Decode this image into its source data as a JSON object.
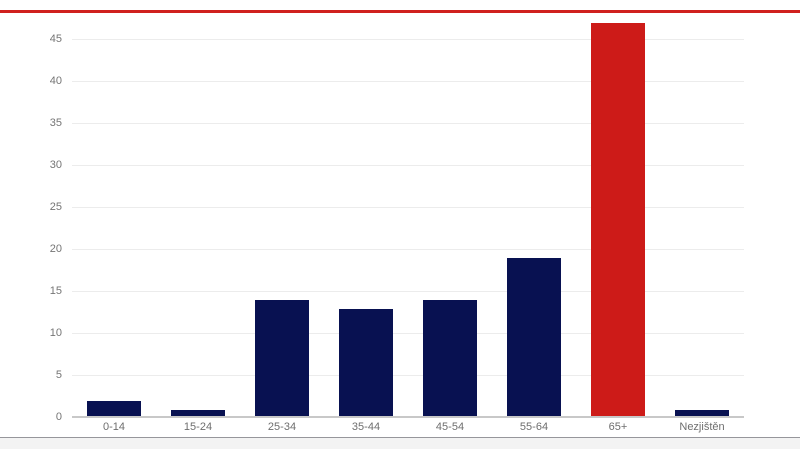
{
  "page": {
    "top_accent_color": "#d0201e",
    "footer_rule_color": "#96969b"
  },
  "chart_data": {
    "type": "bar",
    "title": "",
    "xlabel": "",
    "ylabel": "",
    "categories": [
      "0-14",
      "15-24",
      "25-34",
      "35-44",
      "45-54",
      "55-64",
      "65+",
      "Nezjištěn"
    ],
    "values": [
      2,
      1,
      14,
      13,
      14,
      19,
      47,
      1
    ],
    "bar_colors": [
      "#081151",
      "#081151",
      "#081151",
      "#081151",
      "#081151",
      "#081151",
      "#cd1b18",
      "#081151"
    ],
    "yticks": [
      0,
      5,
      10,
      15,
      20,
      25,
      30,
      35,
      40,
      45
    ],
    "ylim": [
      0,
      50
    ],
    "grid": true,
    "legend": "none",
    "colors": {
      "bar_default": "#081151",
      "bar_highlight": "#cd1b18",
      "gridline": "#ececec",
      "axis_line": "#c8c8c8",
      "tick_label": "#757575"
    },
    "highlight_category": "65+"
  }
}
